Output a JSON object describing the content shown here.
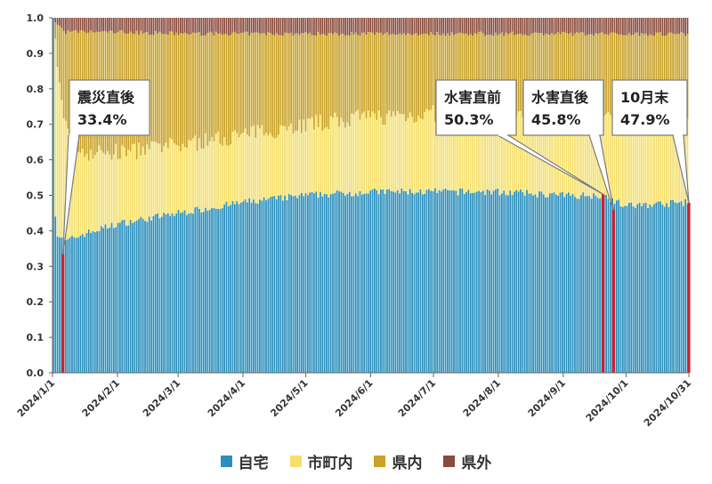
{
  "chart_data": {
    "type": "stacked-bar",
    "ylim": [
      0,
      1.0
    ],
    "yticks": [
      "1.0",
      "0.9",
      "0.8",
      "0.7",
      "0.6",
      "0.5",
      "0.4",
      "0.3",
      "0.2",
      "0.1",
      "0.0"
    ],
    "xticks": [
      {
        "label": "2024/1/1",
        "date": "2024-01-01"
      },
      {
        "label": "2024/2/1",
        "date": "2024-02-01"
      },
      {
        "label": "2024/3/1",
        "date": "2024-03-01"
      },
      {
        "label": "2024/4/1",
        "date": "2024-04-01"
      },
      {
        "label": "2024/5/1",
        "date": "2024-05-01"
      },
      {
        "label": "2024/6/1",
        "date": "2024-06-01"
      },
      {
        "label": "2024/7/1",
        "date": "2024-07-01"
      },
      {
        "label": "2024/8/1",
        "date": "2024-08-01"
      },
      {
        "label": "2024/9/1",
        "date": "2024-09-01"
      },
      {
        "label": "2024/10/1",
        "date": "2024-10-01"
      },
      {
        "label": "2024/10/31",
        "date": "2024-10-31"
      }
    ],
    "x_range": [
      "2024-01-01",
      "2024-10-31"
    ],
    "series": [
      {
        "name": "自宅",
        "color": "#2a8fbd"
      },
      {
        "name": "市町内",
        "color": "#f5e06b"
      },
      {
        "name": "県内",
        "color": "#c9a227"
      },
      {
        "name": "県外",
        "color": "#8b4a3c"
      }
    ],
    "keypoints": [
      {
        "date": "2024-01-01",
        "home": 1.0,
        "city": 1.0,
        "pref": 1.0
      },
      {
        "date": "2024-01-02",
        "home": 0.45,
        "city": 0.92,
        "pref": 0.99
      },
      {
        "date": "2024-01-03",
        "home": 0.39,
        "city": 0.85,
        "pref": 0.98
      },
      {
        "date": "2024-01-05",
        "home": 0.38,
        "city": 0.76,
        "pref": 0.97
      },
      {
        "date": "2024-01-07",
        "home": 0.37,
        "city": 0.7,
        "pref": 0.96
      },
      {
        "date": "2024-01-15",
        "home": 0.39,
        "city": 0.62,
        "pref": 0.96
      },
      {
        "date": "2024-02-01",
        "home": 0.42,
        "city": 0.62,
        "pref": 0.96
      },
      {
        "date": "2024-03-01",
        "home": 0.45,
        "city": 0.64,
        "pref": 0.955
      },
      {
        "date": "2024-04-01",
        "home": 0.48,
        "city": 0.67,
        "pref": 0.955
      },
      {
        "date": "2024-05-01",
        "home": 0.5,
        "city": 0.7,
        "pref": 0.955
      },
      {
        "date": "2024-06-01",
        "home": 0.51,
        "city": 0.72,
        "pref": 0.955
      },
      {
        "date": "2024-07-01",
        "home": 0.51,
        "city": 0.73,
        "pref": 0.955
      },
      {
        "date": "2024-08-01",
        "home": 0.51,
        "city": 0.74,
        "pref": 0.955
      },
      {
        "date": "2024-09-01",
        "home": 0.5,
        "city": 0.74,
        "pref": 0.955
      },
      {
        "date": "2024-09-21",
        "home": 0.5,
        "city": 0.74,
        "pref": 0.955
      },
      {
        "date": "2024-10-01",
        "home": 0.47,
        "city": 0.74,
        "pref": 0.955
      },
      {
        "date": "2024-10-31",
        "home": 0.48,
        "city": 0.74,
        "pref": 0.955
      }
    ],
    "highlights": [
      {
        "date": "2024-01-06",
        "value": 0.334
      },
      {
        "date": "2024-09-20",
        "value": 0.503
      },
      {
        "date": "2024-09-25",
        "value": 0.458
      },
      {
        "date": "2024-10-31",
        "value": 0.479
      }
    ],
    "highlight_color": "#d0202a",
    "annotations": [
      {
        "line1": "震災直後",
        "line2": "33.4%",
        "date": "2024-01-06",
        "value": 0.334
      },
      {
        "line1": "水害直前",
        "line2": "50.3%",
        "date": "2024-09-20",
        "value": 0.503
      },
      {
        "line1": "水害直後",
        "line2": "45.8%",
        "date": "2024-09-25",
        "value": 0.458
      },
      {
        "line1": "10月末",
        "line2": "47.9%",
        "date": "2024-10-31",
        "value": 0.479
      }
    ],
    "grid": false,
    "legend_position": "bottom"
  },
  "legend": {
    "items": [
      {
        "label": "自宅",
        "color": "#2a8fbd"
      },
      {
        "label": "市町内",
        "color": "#f5e06b"
      },
      {
        "label": "県内",
        "color": "#c9a227"
      },
      {
        "label": "県外",
        "color": "#8b4a3c"
      }
    ]
  }
}
